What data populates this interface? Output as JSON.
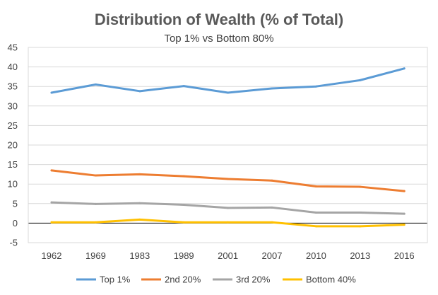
{
  "chart_data": {
    "type": "line",
    "title": "Distribution of Wealth (% of Total)",
    "subtitle": "Top 1% vs Bottom 80%",
    "xlabel": "",
    "ylabel": "",
    "categories": [
      "1962",
      "1969",
      "1983",
      "1989",
      "2001",
      "2007",
      "2010",
      "2013",
      "2016"
    ],
    "ylim": [
      -5,
      45
    ],
    "yticks": [
      -5,
      0,
      5,
      10,
      15,
      20,
      25,
      30,
      35,
      40,
      45
    ],
    "grid": true,
    "legend_position": "bottom",
    "series": [
      {
        "name": "Top 1%",
        "color": "#5b9bd5",
        "values": [
          33.4,
          35.5,
          33.8,
          35.1,
          33.4,
          34.5,
          35.0,
          36.6,
          39.6
        ]
      },
      {
        "name": "2nd 20%",
        "color": "#ed7d31",
        "values": [
          13.5,
          12.2,
          12.5,
          12.0,
          11.3,
          10.9,
          9.4,
          9.3,
          8.2
        ]
      },
      {
        "name": "3rd 20%",
        "color": "#a5a5a5",
        "values": [
          5.3,
          4.9,
          5.1,
          4.7,
          3.9,
          4.0,
          2.7,
          2.7,
          2.4
        ]
      },
      {
        "name": "Bottom 40%",
        "color": "#ffc000",
        "values": [
          0.2,
          0.2,
          0.9,
          0.2,
          0.2,
          0.2,
          -0.8,
          -0.8,
          -0.4
        ]
      }
    ]
  }
}
